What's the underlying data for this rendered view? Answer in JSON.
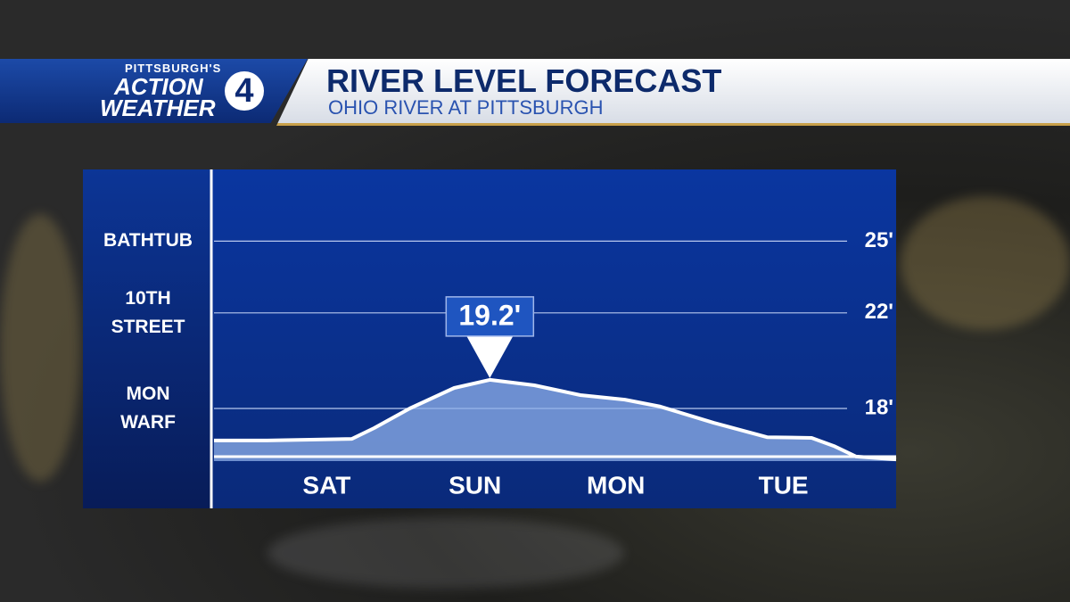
{
  "header": {
    "station_top": "PITTSBURGH'S",
    "station_action": "ACTION",
    "station_weather": "WEATHER",
    "station_number": "4",
    "title": "RIVER LEVEL FORECAST",
    "subtitle": "OHIO RIVER AT PITTSBURGH"
  },
  "chart_data": {
    "type": "area",
    "x": [
      0,
      0.36,
      0.93,
      1.08,
      1.32,
      1.62,
      1.86,
      2.16,
      2.47,
      2.77,
      3.01,
      3.37,
      3.73,
      4.03,
      4.18,
      4.33,
      4.6
    ],
    "series": [
      {
        "color": "#8fb0ea",
        "values": [
          16.66,
          16.66,
          16.73,
          17.18,
          18.0,
          18.86,
          19.2,
          18.97,
          18.56,
          18.37,
          18.08,
          17.4,
          16.8,
          16.77,
          16.43,
          15.99,
          15.87
        ],
        "value_labels": [
          null,
          null,
          null,
          null,
          null,
          null,
          "19.2'",
          null,
          null,
          null,
          null,
          null,
          null,
          null,
          null,
          null,
          null
        ]
      }
    ],
    "xlim": [
      0,
      4.6
    ],
    "xticks": [
      {
        "value": 0.76,
        "label": "SAT"
      },
      {
        "value": 1.76,
        "label": "SUN"
      },
      {
        "value": 2.71,
        "label": "MON"
      },
      {
        "value": 3.84,
        "label": "TUE"
      }
    ],
    "ylim": [
      15.8,
      28
    ],
    "yticks": [
      {
        "value": 18,
        "label": "18'"
      },
      {
        "value": 22,
        "label": "22'"
      },
      {
        "value": 25,
        "label": "25'"
      }
    ],
    "stage_labels": [
      "MON WARF",
      "10TH STREET",
      "BATHTUB"
    ],
    "grid": true
  }
}
